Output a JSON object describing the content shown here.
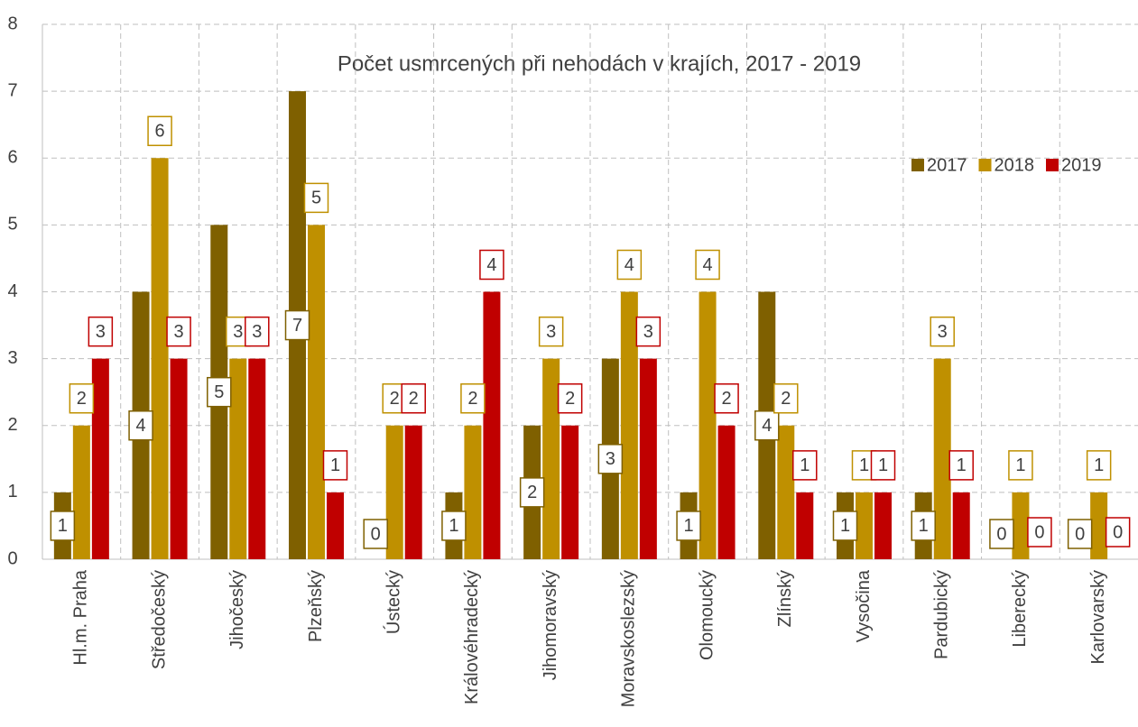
{
  "chart_data": {
    "type": "bar",
    "title": "Počet usmrcených při nehodách v krajích, 2017 - 2019",
    "categories": [
      "Hl.m. Praha",
      "Středočeský",
      "Jihočeský",
      "Plzeňský",
      "Ústecký",
      "Královéhradecký",
      "Jihomoravský",
      "Moravskoslezský",
      "Olomoucký",
      "Zlínský",
      "Vysočina",
      "Pardubický",
      "Liberecký",
      "Karlovarský"
    ],
    "series": [
      {
        "name": "2017",
        "color": "#7f6000",
        "values": [
          1,
          4,
          5,
          7,
          0,
          1,
          2,
          3,
          1,
          4,
          1,
          1,
          0,
          0
        ]
      },
      {
        "name": "2018",
        "color": "#bf9000",
        "values": [
          2,
          6,
          3,
          5,
          2,
          2,
          3,
          4,
          4,
          2,
          1,
          3,
          1,
          1
        ]
      },
      {
        "name": "2019",
        "color": "#c00000",
        "values": [
          3,
          3,
          3,
          1,
          2,
          4,
          2,
          3,
          2,
          1,
          1,
          1,
          0,
          0
        ]
      }
    ],
    "ylim": [
      0,
      8
    ],
    "yticks": [
      0,
      1,
      2,
      3,
      4,
      5,
      6,
      7,
      8
    ],
    "grid": true,
    "legend": "top-right"
  }
}
